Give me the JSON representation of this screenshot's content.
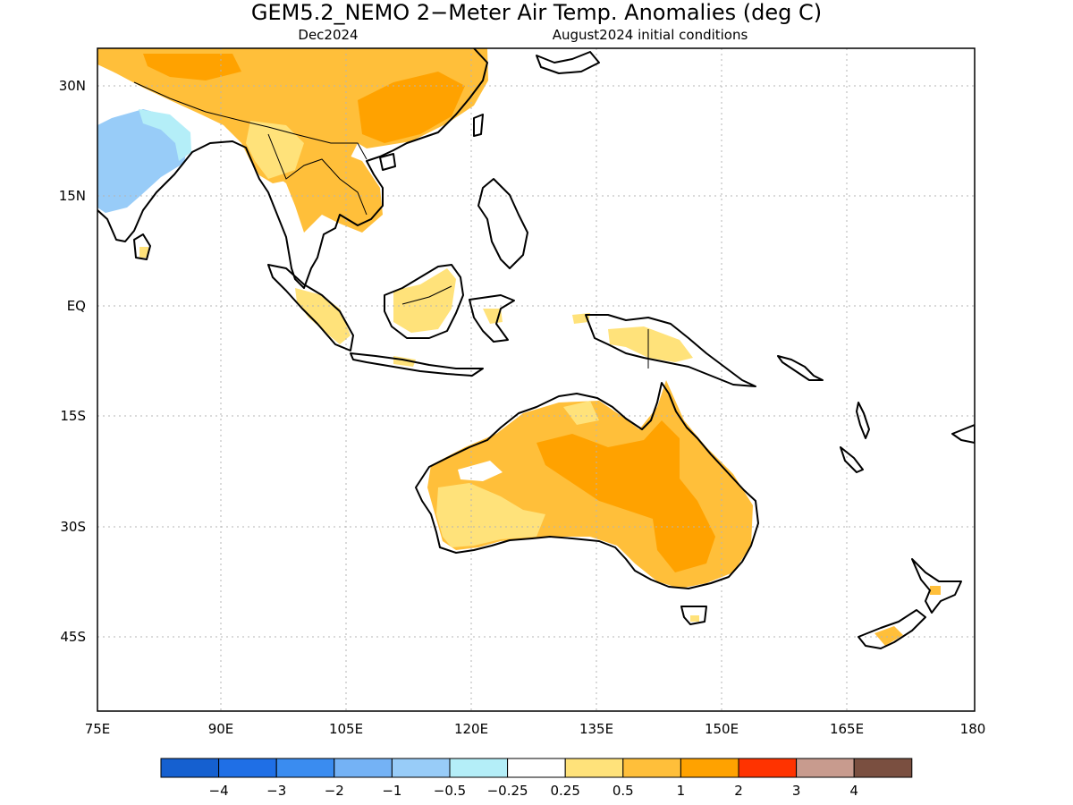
{
  "title": "GEM5.2_NEMO 2−Meter Air Temp. Anomalies (deg C)",
  "subtitle_left": "Dec2024",
  "subtitle_right": "August2024 initial conditions",
  "x_ticks": [
    "75E",
    "90E",
    "105E",
    "120E",
    "135E",
    "150E",
    "165E",
    "180"
  ],
  "y_ticks": [
    "30N",
    "15N",
    "EQ",
    "15S",
    "30S",
    "45S"
  ],
  "colorbar": {
    "labels": [
      "−4",
      "−3",
      "−2",
      "−1",
      "−0.5",
      "−0.25",
      "0.25",
      "0.5",
      "1",
      "2",
      "3",
      "4"
    ],
    "colors": [
      "#1560d0",
      "#1f6fe6",
      "#3a8cf0",
      "#74b2f5",
      "#98ccf8",
      "#b4eef8",
      "#ffffff",
      "#ffe27a",
      "#ffbf3a",
      "#ffa200",
      "#ff3300",
      "#c89b8e",
      "#7a4f40"
    ]
  },
  "chart_data": {
    "type": "map",
    "variable": "2-Meter Air Temp. Anomalies",
    "units": "deg C",
    "lon_range": [
      75,
      180
    ],
    "lat_range": [
      -55,
      35
    ],
    "regions": [
      {
        "name": "India (north-west)",
        "level": "-1 to -0.5",
        "color": "#98ccf8"
      },
      {
        "name": "China / Tibet",
        "level": "0.5 to 1",
        "color": "#ffbf3a"
      },
      {
        "name": "Indochina",
        "level": "0.5 to 1",
        "color": "#ffbf3a"
      },
      {
        "name": "Sumatra / Borneo / New Guinea (parts)",
        "level": "0.25 to 0.5",
        "color": "#ffe27a"
      },
      {
        "name": "Australia (central/east)",
        "level": "1 to 2",
        "color": "#ffa200"
      },
      {
        "name": "Australia (west/coast)",
        "level": "0.5 to 1",
        "color": "#ffbf3a"
      },
      {
        "name": "New Zealand (South Island)",
        "level": "0.5 to 1",
        "color": "#ffbf3a"
      }
    ]
  }
}
